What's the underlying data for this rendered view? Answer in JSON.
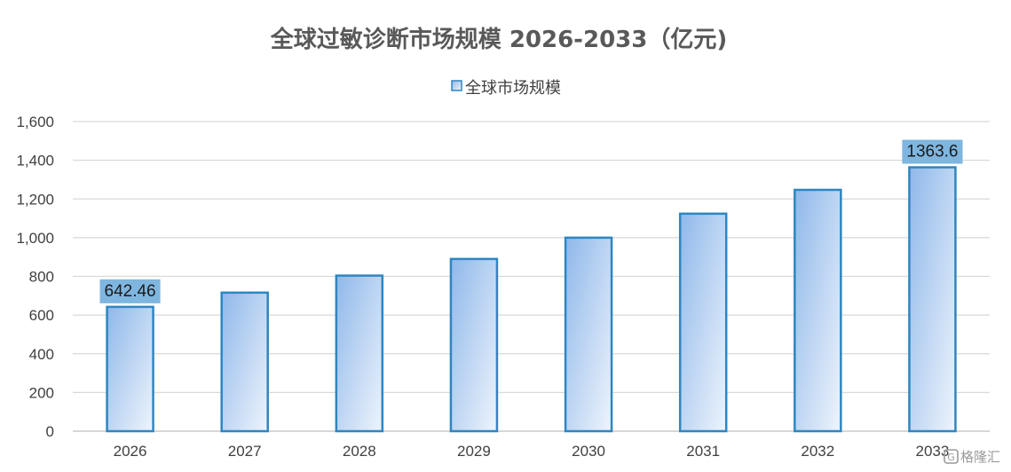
{
  "chart_data": {
    "type": "bar",
    "title": "全球过敏诊断市场规模 2026-2033（亿元)",
    "xlabel": "",
    "ylabel": "",
    "categories": [
      "2026",
      "2027",
      "2028",
      "2029",
      "2030",
      "2031",
      "2032",
      "2033"
    ],
    "series": [
      {
        "name": "全球市场规模",
        "values": [
          642.46,
          716,
          804,
          890,
          1000,
          1124,
          1247,
          1363.6
        ]
      }
    ],
    "data_labels": [
      {
        "index": 0,
        "text": "642.46"
      },
      {
        "index": 7,
        "text": "1363.6"
      }
    ],
    "ylim": [
      0,
      1600
    ],
    "yticks": [
      0,
      200,
      400,
      600,
      800,
      1000,
      1200,
      1400,
      1600
    ],
    "ytick_labels": [
      "0",
      "200",
      "400",
      "600",
      "800",
      "1,000",
      "1,200",
      "1,400",
      "1,600"
    ],
    "grid": true,
    "legend_position": "top",
    "colors": {
      "bar_stroke": "#2e86c1",
      "bar_fill_dark": "#8fb8ea",
      "bar_fill_light": "#eef4fc",
      "label_bg": "#7fb6df",
      "grid": "#d9d9d9",
      "axis": "#bfbfbf"
    }
  },
  "watermark": {
    "text": "格隆汇",
    "icon": "glh-logo-icon"
  }
}
